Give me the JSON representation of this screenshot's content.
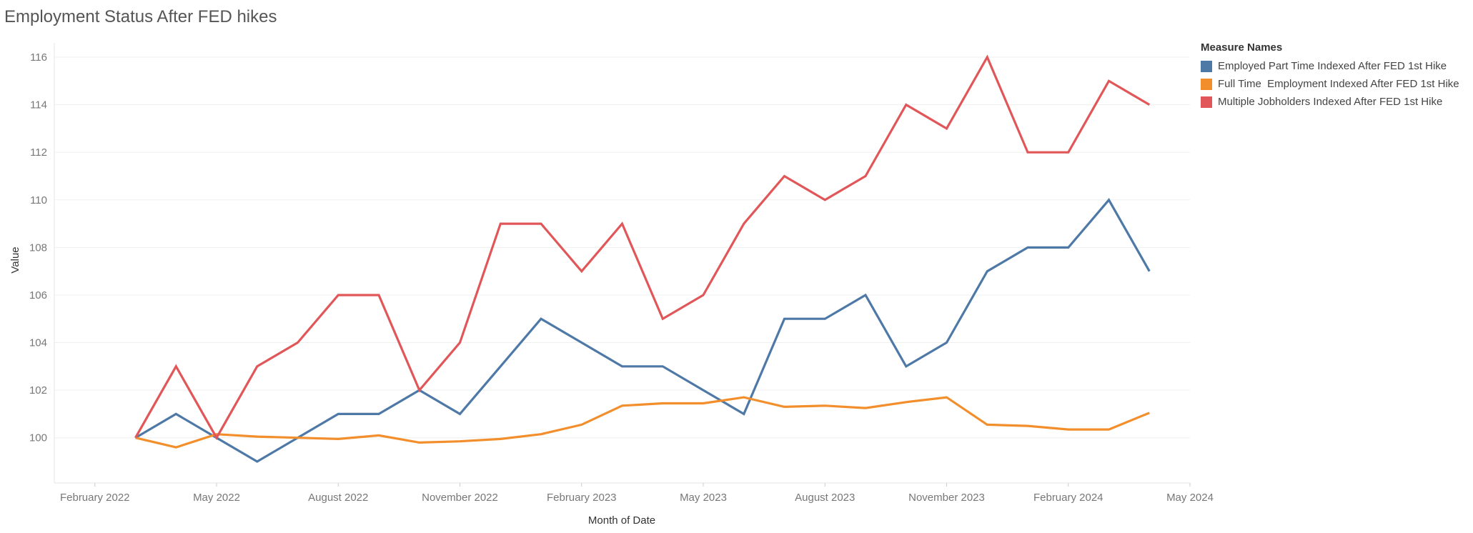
{
  "title": "Employment Status After FED hikes",
  "chart_data": {
    "type": "line",
    "title": "Employment Status After FED hikes",
    "xlabel": "Month of Date",
    "ylabel": "Value",
    "x_ticks": [
      "February 2022",
      "May 2022",
      "August 2022",
      "November 2022",
      "February 2023",
      "May 2023",
      "August 2023",
      "November 2023",
      "February 2024",
      "May 2024"
    ],
    "x_start": "2022-01",
    "x_end": "2024-05",
    "ylim": [
      98.1,
      116.6
    ],
    "y_ticks": [
      100,
      102,
      104,
      106,
      108,
      110,
      112,
      114,
      116
    ],
    "grid": true,
    "legend_title": "Measure Names",
    "legend_position": "top-right",
    "x": [
      "2022-03",
      "2022-04",
      "2022-05",
      "2022-06",
      "2022-07",
      "2022-08",
      "2022-09",
      "2022-10",
      "2022-11",
      "2022-12",
      "2023-01",
      "2023-02",
      "2023-03",
      "2023-04",
      "2023-05",
      "2023-06",
      "2023-07",
      "2023-08",
      "2023-09",
      "2023-10",
      "2023-11",
      "2023-12",
      "2024-01",
      "2024-02",
      "2024-03",
      "2024-04"
    ],
    "series": [
      {
        "name": "Employed Part Time Indexed After FED 1st Hike",
        "color": "#4e79a7",
        "values": [
          100,
          101,
          100,
          99,
          100,
          101,
          101,
          102,
          101,
          103,
          105,
          104,
          103,
          103,
          102,
          101,
          105,
          105,
          106,
          103,
          104,
          107,
          108,
          108,
          110,
          107
        ]
      },
      {
        "name": "Full Time  Employment Indexed After FED 1st Hike",
        "color": "#f28e2b",
        "values": [
          100,
          99.6,
          100.15,
          100.05,
          100,
          99.95,
          100.1,
          99.8,
          99.85,
          99.95,
          100.15,
          100.55,
          101.35,
          101.45,
          101.45,
          101.7,
          101.3,
          101.35,
          101.25,
          101.5,
          101.7,
          100.55,
          100.5,
          100.35,
          100.35,
          101.05
        ]
      },
      {
        "name": "Multiple Jobholders Indexed After FED 1st Hike",
        "color": "#e15759",
        "values": [
          100,
          103,
          100,
          103,
          104,
          106,
          106,
          102,
          104,
          109,
          109,
          107,
          109,
          105,
          106,
          109,
          111,
          110,
          111,
          114,
          113,
          116,
          112,
          112,
          115,
          114
        ]
      }
    ]
  }
}
